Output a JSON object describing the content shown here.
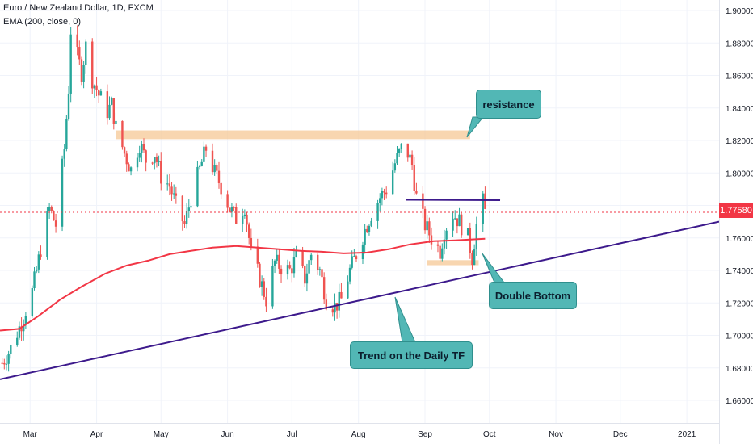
{
  "header": {
    "symbol_line": "Euro / New Zealand Dollar, 1D, FXCM",
    "indicator_line": "EMA (200, close, 0)"
  },
  "last_price": "1.77580",
  "annotations": {
    "resistance": "resistance",
    "double_bottom": "Double Bottom",
    "trend": "Trend on the Daily TF"
  },
  "colors": {
    "up": "#26a69a",
    "down": "#ef5350",
    "ema": "#f23645",
    "trendline": "#3d1a8c",
    "zone": "#f5c896",
    "annotation_bg": "#52b7b5",
    "price_badge": "#f23645"
  },
  "chart_data": {
    "type": "candlestick",
    "title": "Euro / New Zealand Dollar, 1D, FXCM",
    "xlabel": "",
    "ylabel": "",
    "ylim": [
      1.652,
      1.905
    ],
    "y_ticks": [
      "1.90000",
      "1.88000",
      "1.86000",
      "1.84000",
      "1.82000",
      "1.80000",
      "1.78000",
      "1.76000",
      "1.74000",
      "1.72000",
      "1.70000",
      "1.68000",
      "1.66000"
    ],
    "y_tick_values": [
      1.9,
      1.88,
      1.86,
      1.84,
      1.82,
      1.8,
      1.78,
      1.76,
      1.74,
      1.72,
      1.7,
      1.68,
      1.66
    ],
    "x_ticks": [
      {
        "label": "Mar",
        "date": "2020-03-01"
      },
      {
        "label": "Apr",
        "date": "2020-04-01"
      },
      {
        "label": "May",
        "date": "2020-05-01"
      },
      {
        "label": "Jun",
        "date": "2020-06-01"
      },
      {
        "label": "Jul",
        "date": "2020-07-01"
      },
      {
        "label": "Aug",
        "date": "2020-08-01"
      },
      {
        "label": "Sep",
        "date": "2020-09-01"
      },
      {
        "label": "Oct",
        "date": "2020-10-01"
      },
      {
        "label": "Nov",
        "date": "2020-11-01"
      },
      {
        "label": "Dec",
        "date": "2020-12-01"
      },
      {
        "label": "2021",
        "date": "2021-01-01"
      }
    ],
    "xlim": [
      "2020-02-16",
      "2021-01-16"
    ],
    "close_series": [
      [
        "2020-02-17",
        1.683
      ],
      [
        "2020-02-21",
        1.692
      ],
      [
        "2020-02-26",
        1.708
      ],
      [
        "2020-03-02",
        1.727
      ],
      [
        "2020-03-06",
        1.753
      ],
      [
        "2020-03-10",
        1.778
      ],
      [
        "2020-03-13",
        1.768
      ],
      [
        "2020-03-17",
        1.815
      ],
      [
        "2020-03-19",
        1.852
      ],
      [
        "2020-03-20",
        1.888
      ],
      [
        "2020-03-23",
        1.872
      ],
      [
        "2020-03-25",
        1.862
      ],
      [
        "2020-03-27",
        1.878
      ],
      [
        "2020-03-30",
        1.858
      ],
      [
        "2020-04-02",
        1.848
      ],
      [
        "2020-04-06",
        1.838
      ],
      [
        "2020-04-08",
        1.842
      ],
      [
        "2020-04-10",
        1.828
      ],
      [
        "2020-04-14",
        1.812
      ],
      [
        "2020-04-17",
        1.802
      ],
      [
        "2020-04-21",
        1.818
      ],
      [
        "2020-04-24",
        1.808
      ],
      [
        "2020-04-28",
        1.812
      ],
      [
        "2020-05-01",
        1.798
      ],
      [
        "2020-05-05",
        1.792
      ],
      [
        "2020-05-08",
        1.78
      ],
      [
        "2020-05-12",
        1.768
      ],
      [
        "2020-05-15",
        1.785
      ],
      [
        "2020-05-19",
        1.802
      ],
      [
        "2020-05-22",
        1.815
      ],
      [
        "2020-05-26",
        1.8
      ],
      [
        "2020-05-29",
        1.792
      ],
      [
        "2020-06-02",
        1.778
      ],
      [
        "2020-06-05",
        1.772
      ],
      [
        "2020-06-09",
        1.78
      ],
      [
        "2020-06-12",
        1.75
      ],
      [
        "2020-06-16",
        1.735
      ],
      [
        "2020-06-19",
        1.722
      ],
      [
        "2020-06-23",
        1.745
      ],
      [
        "2020-06-26",
        1.742
      ],
      [
        "2020-06-30",
        1.74
      ],
      [
        "2020-07-03",
        1.748
      ],
      [
        "2020-07-07",
        1.735
      ],
      [
        "2020-07-10",
        1.75
      ],
      [
        "2020-07-14",
        1.74
      ],
      [
        "2020-07-17",
        1.722
      ],
      [
        "2020-07-21",
        1.718
      ],
      [
        "2020-07-24",
        1.722
      ],
      [
        "2020-07-28",
        1.74
      ],
      [
        "2020-07-31",
        1.75
      ],
      [
        "2020-08-04",
        1.765
      ],
      [
        "2020-08-07",
        1.775
      ],
      [
        "2020-08-11",
        1.785
      ],
      [
        "2020-08-14",
        1.79
      ],
      [
        "2020-08-18",
        1.806
      ],
      [
        "2020-08-21",
        1.815
      ],
      [
        "2020-08-24",
        1.812
      ],
      [
        "2020-08-26",
        1.805
      ],
      [
        "2020-08-28",
        1.785
      ],
      [
        "2020-09-01",
        1.768
      ],
      [
        "2020-09-04",
        1.76
      ],
      [
        "2020-09-08",
        1.752
      ],
      [
        "2020-09-10",
        1.765
      ],
      [
        "2020-09-14",
        1.775
      ],
      [
        "2020-09-17",
        1.77
      ],
      [
        "2020-09-21",
        1.76
      ],
      [
        "2020-09-23",
        1.748
      ],
      [
        "2020-09-25",
        1.768
      ],
      [
        "2020-09-28",
        1.782
      ],
      [
        "2020-09-29",
        1.7758
      ]
    ],
    "ema_200": [
      [
        "2020-02-16",
        1.703
      ],
      [
        "2020-02-25",
        1.704
      ],
      [
        "2020-03-05",
        1.712
      ],
      [
        "2020-03-15",
        1.722
      ],
      [
        "2020-03-25",
        1.73
      ],
      [
        "2020-04-05",
        1.738
      ],
      [
        "2020-04-15",
        1.743
      ],
      [
        "2020-04-25",
        1.746
      ],
      [
        "2020-05-05",
        1.75
      ],
      [
        "2020-05-15",
        1.752
      ],
      [
        "2020-05-25",
        1.754
      ],
      [
        "2020-06-05",
        1.755
      ],
      [
        "2020-06-15",
        1.754
      ],
      [
        "2020-06-25",
        1.753
      ],
      [
        "2020-07-05",
        1.752
      ],
      [
        "2020-07-15",
        1.7515
      ],
      [
        "2020-07-25",
        1.7505
      ],
      [
        "2020-08-05",
        1.751
      ],
      [
        "2020-08-15",
        1.753
      ],
      [
        "2020-08-25",
        1.756
      ],
      [
        "2020-09-05",
        1.758
      ],
      [
        "2020-09-15",
        1.7585
      ],
      [
        "2020-09-29",
        1.7595
      ]
    ],
    "trendline": {
      "from": [
        "2020-02-16",
        1.673
      ],
      "to": [
        "2021-01-16",
        1.77
      ]
    },
    "resistance_zone": {
      "from": "2020-04-10",
      "to": "2020-09-22",
      "y_low": 1.8208,
      "y_high": 1.8262
    },
    "double_bottom_zone": {
      "from": "2020-09-02",
      "to": "2020-09-26",
      "y_low": 1.7432,
      "y_high": 1.7463
    },
    "neckline": {
      "from": [
        "2020-08-23",
        1.7835
      ],
      "to": [
        "2020-10-06",
        1.7832
      ]
    },
    "last_price": 1.7758
  }
}
